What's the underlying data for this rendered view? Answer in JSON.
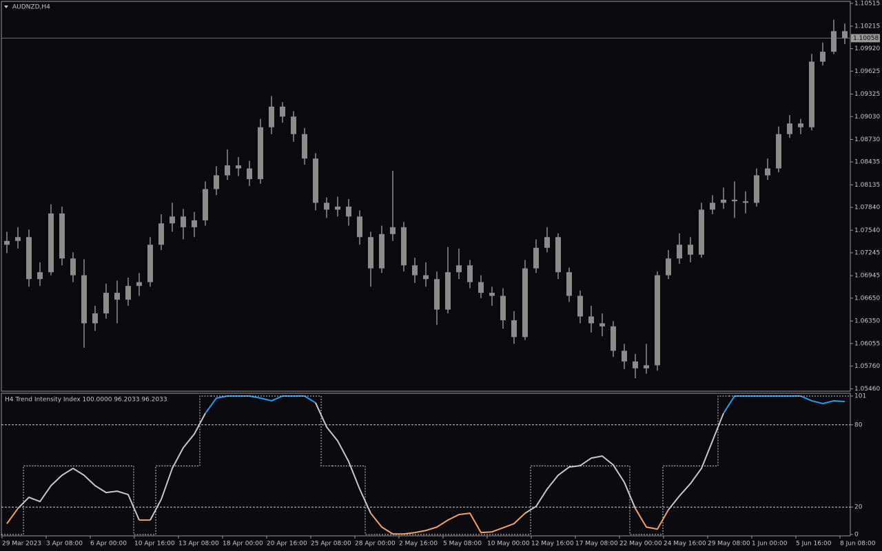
{
  "chart_data": [
    {
      "type": "candlestick",
      "title": "AUDNZD,H4",
      "categories": [
        "29 Mar 2023",
        null,
        null,
        null,
        "3 Apr 08:00",
        null,
        null,
        null,
        "6 Apr 00:00",
        null,
        null,
        null,
        "10 Apr 16:00",
        null,
        null,
        null,
        "13 Apr 08:00",
        null,
        null,
        null,
        "18 Apr 00:00",
        null,
        null,
        null,
        "20 Apr 16:00",
        null,
        null,
        null,
        "25 Apr 08:00",
        null,
        null,
        null,
        "28 Apr 00:00",
        null,
        null,
        null,
        "2 May 16:00",
        null,
        null,
        null,
        "5 May 08:00",
        null,
        null,
        null,
        "10 May 00:00",
        null,
        null,
        null,
        "12 May 16:00",
        null,
        null,
        null,
        "17 May 08:00",
        null,
        null,
        null,
        "22 May 00:00",
        null,
        null,
        null,
        "24 May 16:00",
        null,
        null,
        null,
        "29 May 08:00",
        null,
        null,
        null,
        "1 Jun 00:00",
        null,
        null,
        null,
        "5 Jun 16:00",
        null,
        null,
        null,
        "8 Jun 08:00"
      ],
      "open": [
        1.0735,
        1.074,
        1.0745,
        1.069,
        1.0699,
        1.0776,
        1.0717,
        1.0695,
        1.0632,
        1.0645,
        1.0672,
        1.0663,
        1.0681,
        1.0686,
        1.0735,
        1.0763,
        1.0772,
        1.0758,
        1.0767,
        1.0808,
        1.0826,
        1.0839,
        1.0835,
        1.0821,
        1.0889,
        1.0916,
        1.0903,
        1.088,
        1.0848,
        1.079,
        1.0781,
        1.0785,
        1.0772,
        1.0745,
        1.0704,
        1.0749,
        1.0758,
        1.0708,
        1.0695,
        1.069,
        1.065,
        1.0699,
        1.0708,
        1.0686,
        1.0672,
        1.0668,
        1.0636,
        1.0614,
        1.0704,
        1.0731,
        1.0745,
        1.0699,
        1.0668,
        1.0641,
        1.0632,
        1.0628,
        1.0596,
        1.0582,
        1.0573,
        1.0577,
        1.0695,
        1.0717,
        1.0735,
        1.0722,
        1.0781,
        1.079,
        1.0794,
        1.0792,
        1.079,
        1.0826,
        1.0835,
        1.088,
        1.0894,
        1.0889,
        1.0975,
        1.0988,
        1.1015
      ],
      "high": [
        1.0752,
        1.0758,
        1.0755,
        1.0712,
        1.0788,
        1.0785,
        1.0725,
        1.0716,
        1.0655,
        1.0684,
        1.0688,
        1.0692,
        1.0698,
        1.0745,
        1.0775,
        1.079,
        1.0782,
        1.0778,
        1.0818,
        1.0838,
        1.086,
        1.085,
        1.0845,
        1.09,
        1.093,
        1.0922,
        1.091,
        1.0888,
        1.0855,
        1.0797,
        1.0798,
        1.0795,
        1.078,
        1.0752,
        1.076,
        1.0832,
        1.0765,
        1.0718,
        1.0712,
        1.07,
        1.0732,
        1.073,
        1.0715,
        1.0695,
        1.068,
        1.0678,
        1.0648,
        1.0715,
        1.0742,
        1.0758,
        1.075,
        1.0705,
        1.0675,
        1.0655,
        1.0645,
        1.0635,
        1.0605,
        1.0592,
        1.0605,
        1.07,
        1.0728,
        1.075,
        1.0745,
        1.079,
        1.08,
        1.081,
        1.0818,
        1.0805,
        1.0835,
        1.0848,
        1.089,
        1.0905,
        1.09,
        1.0985,
        1.1,
        1.103,
        1.1025
      ],
      "low": [
        1.0724,
        1.073,
        1.068,
        1.0681,
        1.0695,
        1.0708,
        1.0686,
        1.06,
        1.0622,
        1.0638,
        1.0632,
        1.0655,
        1.0668,
        1.068,
        1.0728,
        1.0752,
        1.0742,
        1.0745,
        1.076,
        1.08,
        1.082,
        1.0825,
        1.0812,
        1.0815,
        1.088,
        1.0895,
        1.087,
        1.084,
        1.078,
        1.077,
        1.0772,
        1.076,
        1.0735,
        1.068,
        1.0698,
        1.074,
        1.07,
        1.0685,
        1.068,
        1.063,
        1.0645,
        1.069,
        1.0678,
        1.0665,
        1.0655,
        1.0625,
        1.0605,
        1.061,
        1.0698,
        1.0725,
        1.069,
        1.066,
        1.0632,
        1.062,
        1.0615,
        1.0588,
        1.0572,
        1.056,
        1.0566,
        1.057,
        1.069,
        1.071,
        1.0712,
        1.0718,
        1.0775,
        1.0782,
        1.077,
        1.0776,
        1.0785,
        1.082,
        1.083,
        1.0875,
        1.088,
        1.0885,
        1.097,
        1.0985,
        1.0998
      ],
      "close": [
        1.074,
        1.0745,
        1.069,
        1.0699,
        1.0776,
        1.0717,
        1.0695,
        1.0632,
        1.0645,
        1.0672,
        1.0663,
        1.0681,
        1.0686,
        1.0735,
        1.0763,
        1.0772,
        1.0758,
        1.0767,
        1.0808,
        1.0826,
        1.0839,
        1.0835,
        1.0821,
        1.0889,
        1.0916,
        1.0903,
        1.088,
        1.0848,
        1.079,
        1.0781,
        1.0785,
        1.0772,
        1.0745,
        1.0704,
        1.0749,
        1.0758,
        1.0708,
        1.0695,
        1.069,
        1.065,
        1.0699,
        1.0708,
        1.0686,
        1.0672,
        1.0668,
        1.0636,
        1.0614,
        1.0704,
        1.0731,
        1.0745,
        1.0699,
        1.0668,
        1.0641,
        1.0632,
        1.0628,
        1.0596,
        1.0582,
        1.0573,
        1.0577,
        1.0695,
        1.0717,
        1.0735,
        1.0722,
        1.0781,
        1.079,
        1.0794,
        1.0792,
        1.079,
        1.0826,
        1.0835,
        1.088,
        1.0894,
        1.0889,
        1.0975,
        1.0988,
        1.1015,
        1.1006
      ],
      "color": "#8c8c8c",
      "current_price": 1.10058,
      "ylim": [
        1.0543,
        1.1054
      ],
      "yticks": [
        1.10515,
        1.10215,
        {
          "value": 1.0992,
          "label": "1.09920"
        },
        1.09625,
        1.09325,
        {
          "value": 1.0903,
          "label": "1.09030"
        },
        {
          "value": 1.0873,
          "label": "1.08730"
        },
        1.08435,
        1.08135,
        {
          "value": 1.0784,
          "label": "1.07840"
        },
        {
          "value": 1.0754,
          "label": "1.07540"
        },
        1.07245,
        1.06945,
        {
          "value": 1.0665,
          "label": "1.06650"
        },
        {
          "value": 1.0635,
          "label": "1.06350"
        },
        1.06055,
        {
          "value": 1.0576,
          "label": "1.05760"
        },
        {
          "value": 1.0546,
          "label": "1.05460"
        }
      ]
    },
    {
      "type": "line",
      "title": "H4 Trend Intensity Index 100.0000 96.2033 96.2033",
      "series": [
        {
          "color": "#c8c8c8",
          "upper_color": "#1ea0f0",
          "lower_color": "#f4a060",
          "values": [
            7.9,
            19.0,
            27.1,
            24.0,
            35.6,
            43.2,
            48.2,
            43.2,
            35.6,
            30.6,
            31.6,
            29.1,
            10.5,
            10.5,
            25.6,
            48.2,
            63.3,
            73.3,
            88.4,
            99.5,
            101,
            101,
            101,
            99.5,
            97.5,
            101,
            101,
            101,
            96.0,
            78.4,
            68.3,
            53.2,
            33.1,
            15.5,
            5.4,
            0.4,
            0.4,
            1.4,
            2.9,
            5.4,
            10.5,
            14.5,
            15.5,
            1.4,
            1.9,
            4.9,
            7.9,
            15.5,
            20.5,
            33.1,
            43.2,
            49.2,
            50.2,
            55.7,
            57.2,
            50.7,
            38.1,
            19.0,
            5.4,
            3.9,
            18.0,
            28.1,
            37.1,
            48.2,
            68.3,
            88.4,
            101,
            101,
            101,
            101,
            101,
            101,
            101,
            97.5,
            95.5,
            97.5,
            97.0
          ]
        },
        {
          "color": "#d0d0d0",
          "dashed": true,
          "values": [
            0,
            0,
            50,
            50,
            50,
            50,
            50,
            50,
            50,
            50,
            50,
            50,
            0,
            0,
            50,
            50,
            50,
            50,
            101,
            101,
            101,
            101,
            101,
            101,
            101,
            101,
            101,
            101,
            101,
            50,
            50,
            50,
            50,
            0,
            0,
            0,
            0,
            0,
            0,
            0,
            0,
            0,
            0,
            0,
            0,
            0,
            0,
            0,
            50,
            50,
            50,
            50,
            50,
            50,
            50,
            50,
            50,
            0,
            0,
            0,
            50,
            50,
            50,
            50,
            50,
            101,
            101,
            101,
            101,
            101,
            101,
            101,
            101,
            101,
            101,
            101,
            101
          ]
        }
      ],
      "levels": [
        80,
        20
      ],
      "ylim": [
        -1,
        103
      ],
      "yticks": [
        101,
        80,
        20,
        0
      ]
    }
  ]
}
